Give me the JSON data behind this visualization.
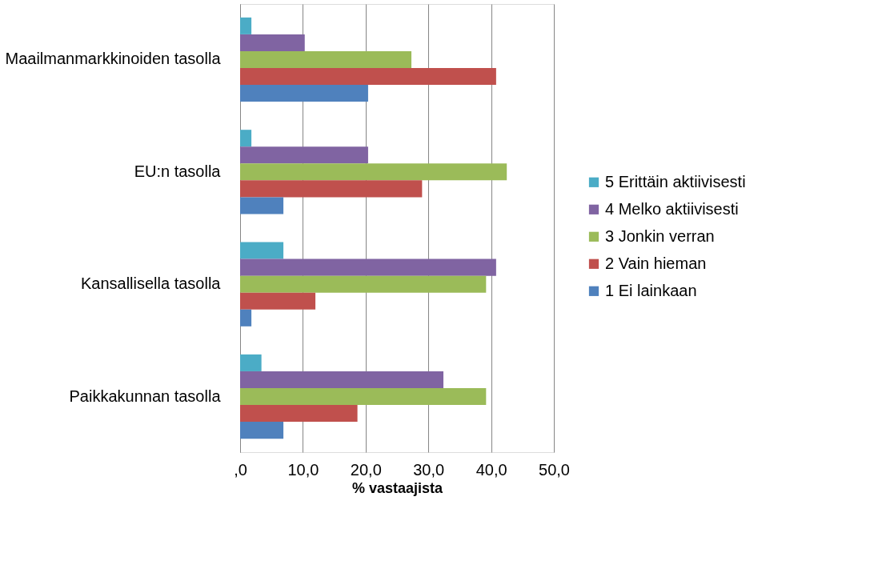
{
  "chart_data": {
    "type": "bar",
    "orientation": "horizontal",
    "xlabel": "% vastaajista",
    "categories": [
      "Maailmanmarkkinoiden tasolla",
      "EU:n tasolla",
      "Kansallisella tasolla",
      "Paikkakunnan tasolla"
    ],
    "series": [
      {
        "name": "5 Erittäin aktiivisesti",
        "color": "#4bacc6",
        "values": [
          1.8,
          1.8,
          6.9,
          3.4
        ]
      },
      {
        "name": "4 Melko aktiivisesti",
        "color": "#8064a2",
        "values": [
          10.3,
          20.4,
          40.8,
          32.4
        ]
      },
      {
        "name": "3 Jonkin verran",
        "color": "#9bbb59",
        "values": [
          27.3,
          42.5,
          39.2,
          39.2
        ]
      },
      {
        "name": "2 Vain hieman",
        "color": "#c0504d",
        "values": [
          40.8,
          29.0,
          12.0,
          18.7
        ]
      },
      {
        "name": "1 Ei lainkaan",
        "color": "#4f81bd",
        "values": [
          20.4,
          6.9,
          1.8,
          6.9
        ]
      }
    ],
    "xlim": [
      0,
      50
    ],
    "xticks": [
      {
        "value": 0,
        "label": ",0"
      },
      {
        "value": 10,
        "label": "10,0"
      },
      {
        "value": 20,
        "label": "20,0"
      },
      {
        "value": 30,
        "label": "30,0"
      },
      {
        "value": 40,
        "label": "40,0"
      },
      {
        "value": 50,
        "label": "50,0"
      }
    ],
    "grid": "x",
    "legend": "right"
  }
}
